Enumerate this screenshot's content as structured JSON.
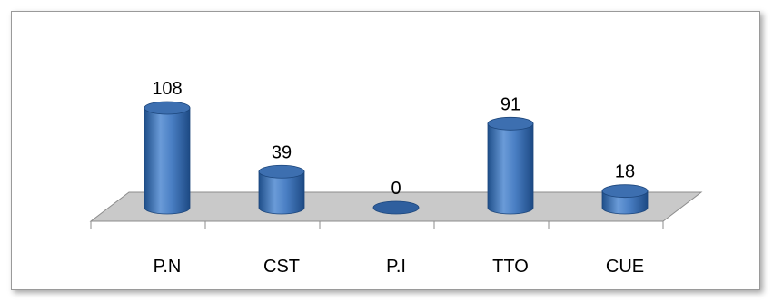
{
  "chart_data": {
    "type": "bar",
    "style": "3d-cylinder",
    "categories": [
      "P.N",
      "CST",
      "P.I",
      "TTO",
      "CUE"
    ],
    "values": [
      108,
      39,
      0,
      91,
      18
    ],
    "title": "",
    "xlabel": "",
    "ylabel": "",
    "ylim": [
      0,
      108
    ],
    "grid": false,
    "legend": "none",
    "colors": {
      "bar": "#4f81bd",
      "bar_dark": "#1f4f8a",
      "floor": "#c9c9c9",
      "floor_edge": "#8c8c8c"
    }
  }
}
